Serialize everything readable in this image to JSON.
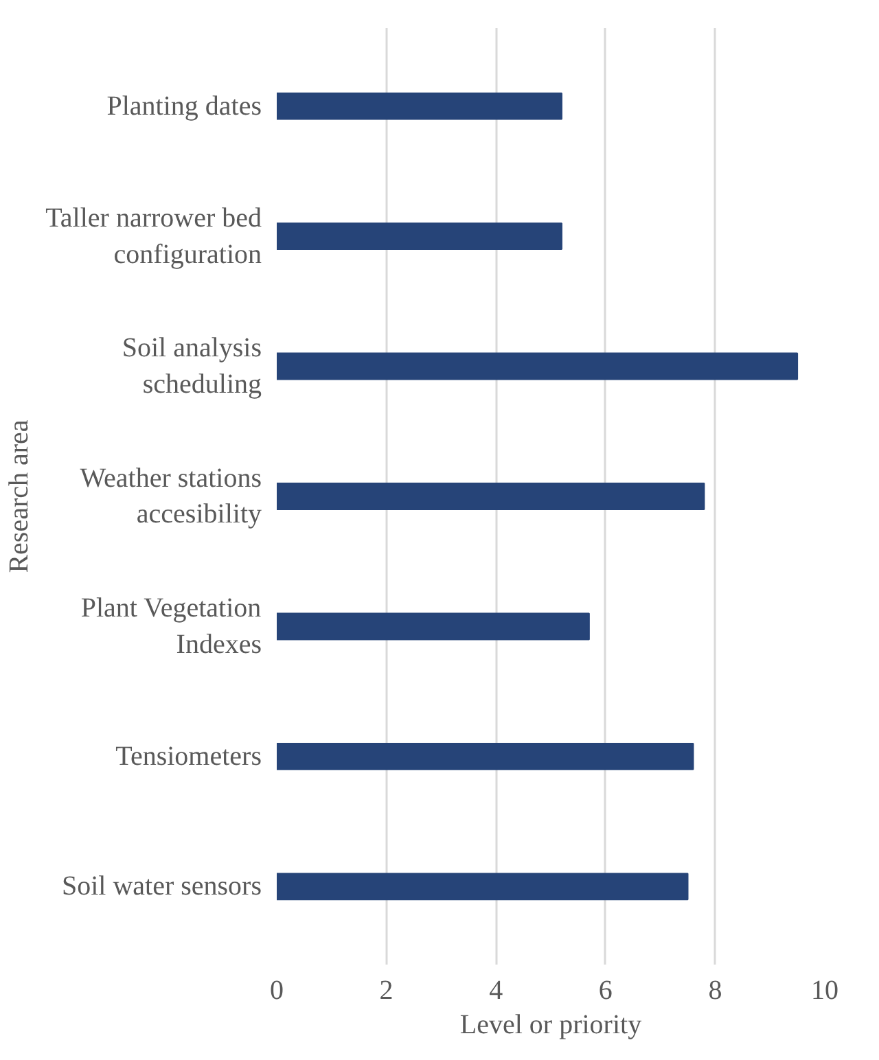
{
  "chart_data": {
    "type": "bar",
    "orientation": "horizontal",
    "xlabel": "Level or priority",
    "ylabel": "Research area",
    "categories": [
      "Planting dates",
      "Taller narrower bed configuration",
      "Soil analysis scheduling",
      "Weather stations accesibility",
      "Plant Vegetation Indexes",
      "Tensiometers",
      "Soil water sensors"
    ],
    "values": [
      5.2,
      5.2,
      9.5,
      7.8,
      5.7,
      7.6,
      7.5
    ],
    "color": "#264478",
    "xlim": [
      0,
      10
    ],
    "xticks": [
      0,
      2,
      4,
      6,
      8,
      10
    ],
    "grid": "x"
  }
}
